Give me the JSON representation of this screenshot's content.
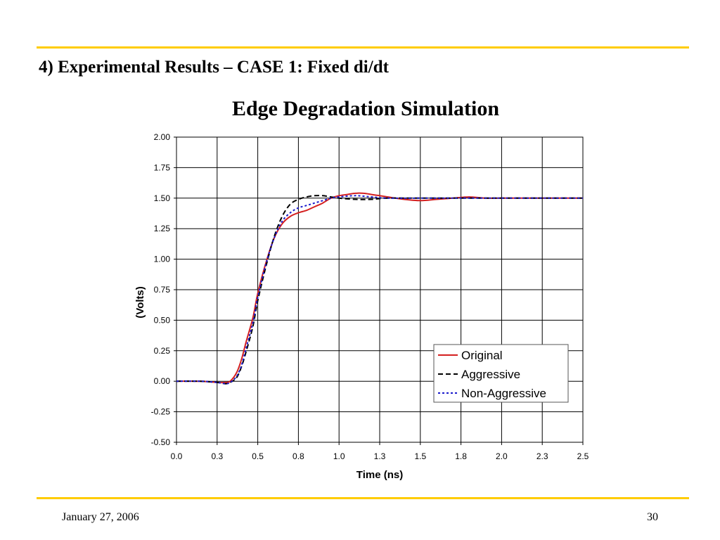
{
  "slide": {
    "title": "4) Experimental Results – CASE 1: Fixed di/dt",
    "footer_date": "January 27, 2006",
    "page_number": "30",
    "accent_color": "#ffcc00"
  },
  "chart_data": {
    "type": "line",
    "title": "Edge Degradation Simulation",
    "xlabel": "Time (ns)",
    "ylabel": "(Volts)",
    "xlim": [
      0.0,
      2.5
    ],
    "ylim": [
      -0.5,
      2.0
    ],
    "x_tick_labels": [
      "0.0",
      "0.3",
      "0.5",
      "0.8",
      "1.0",
      "1.3",
      "1.5",
      "1.8",
      "2.0",
      "2.3",
      "2.5"
    ],
    "y_tick_labels": [
      "2.00",
      "1.75",
      "1.50",
      "1.25",
      "1.00",
      "0.75",
      "0.50",
      "0.25",
      "0.00",
      "-0.25",
      "-0.50"
    ],
    "grid": true,
    "legend_position": "bottom-right",
    "series": [
      {
        "name": "Original",
        "color": "#d42020",
        "dash": "solid",
        "x": [
          0.0,
          0.15,
          0.25,
          0.3,
          0.33,
          0.37,
          0.4,
          0.43,
          0.47,
          0.5,
          0.55,
          0.6,
          0.65,
          0.7,
          0.75,
          0.8,
          0.85,
          0.9,
          0.95,
          1.0,
          1.05,
          1.1,
          1.15,
          1.2,
          1.25,
          1.3,
          1.4,
          1.5,
          1.6,
          1.7,
          1.8,
          1.9,
          2.0,
          2.2,
          2.5
        ],
        "y": [
          0.0,
          0.0,
          -0.01,
          -0.01,
          0.0,
          0.07,
          0.18,
          0.33,
          0.52,
          0.72,
          0.97,
          1.17,
          1.29,
          1.35,
          1.38,
          1.4,
          1.43,
          1.46,
          1.5,
          1.52,
          1.53,
          1.54,
          1.54,
          1.53,
          1.52,
          1.51,
          1.49,
          1.48,
          1.49,
          1.5,
          1.51,
          1.5,
          1.5,
          1.5,
          1.5
        ]
      },
      {
        "name": "Aggressive",
        "color": "#000000",
        "dash": "dashed",
        "x": [
          0.0,
          0.15,
          0.25,
          0.3,
          0.33,
          0.37,
          0.4,
          0.43,
          0.47,
          0.5,
          0.55,
          0.6,
          0.65,
          0.7,
          0.75,
          0.8,
          0.85,
          0.9,
          0.95,
          1.0,
          1.1,
          1.2,
          1.3,
          1.5,
          1.8,
          2.0,
          2.5
        ],
        "y": [
          0.0,
          0.0,
          -0.01,
          -0.02,
          -0.01,
          0.03,
          0.12,
          0.25,
          0.45,
          0.66,
          0.94,
          1.18,
          1.35,
          1.45,
          1.49,
          1.51,
          1.52,
          1.52,
          1.51,
          1.5,
          1.49,
          1.49,
          1.5,
          1.5,
          1.5,
          1.5,
          1.5
        ]
      },
      {
        "name": "Non-Aggressive",
        "color": "#1a1acc",
        "dash": "dotted",
        "x": [
          0.0,
          0.15,
          0.25,
          0.3,
          0.33,
          0.37,
          0.4,
          0.43,
          0.47,
          0.5,
          0.55,
          0.6,
          0.65,
          0.7,
          0.75,
          0.8,
          0.85,
          0.9,
          0.95,
          1.0,
          1.1,
          1.2,
          1.3,
          1.5,
          1.8,
          2.0,
          2.5
        ],
        "y": [
          0.0,
          0.0,
          -0.01,
          -0.02,
          -0.01,
          0.04,
          0.13,
          0.28,
          0.48,
          0.69,
          0.96,
          1.17,
          1.31,
          1.38,
          1.42,
          1.44,
          1.46,
          1.48,
          1.5,
          1.51,
          1.52,
          1.51,
          1.5,
          1.5,
          1.5,
          1.5,
          1.5
        ]
      }
    ]
  }
}
